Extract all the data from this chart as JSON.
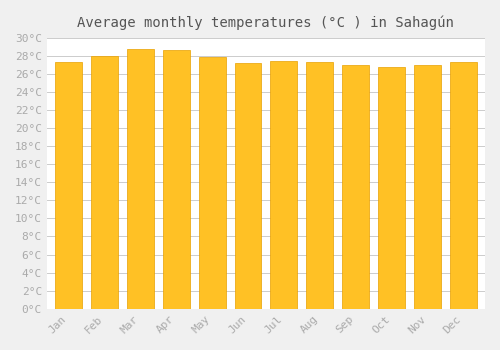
{
  "title": "Average monthly temperatures (°C ) in Sahagún",
  "months": [
    "Jan",
    "Feb",
    "Mar",
    "Apr",
    "May",
    "Jun",
    "Jul",
    "Aug",
    "Sep",
    "Oct",
    "Nov",
    "Dec"
  ],
  "values": [
    27.3,
    28.0,
    28.7,
    28.6,
    27.8,
    27.2,
    27.4,
    27.3,
    27.0,
    26.8,
    27.0,
    27.3
  ],
  "bar_color_top": "#FFC125",
  "bar_color_bottom": "#FFB300",
  "bar_edge_color": "#E8A000",
  "background_color": "#F0F0F0",
  "plot_bg_color": "#FFFFFF",
  "grid_color": "#CCCCCC",
  "ylim": [
    0,
    30
  ],
  "ytick_step": 2,
  "title_fontsize": 10,
  "tick_fontsize": 8,
  "tick_label_color": "#AAAAAA",
  "title_color": "#555555"
}
